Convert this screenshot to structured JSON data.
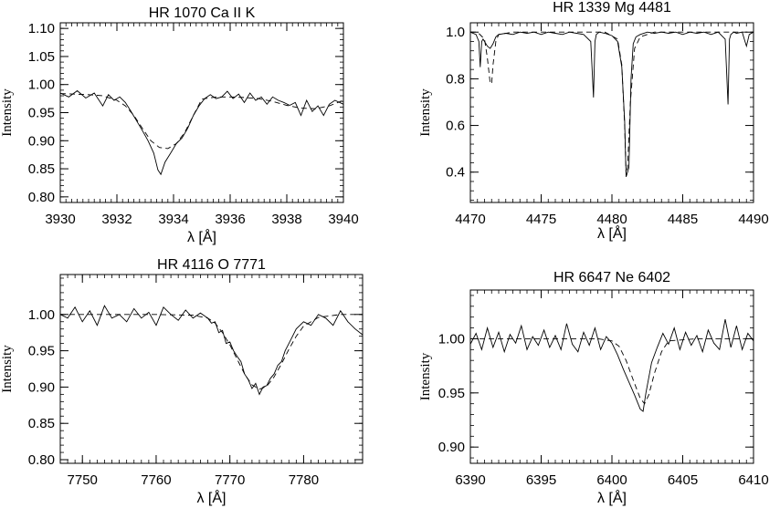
{
  "chart_data": [
    {
      "type": "line",
      "title": "HR 1070   Ca II K",
      "xlabel": "λ [Å]",
      "ylabel": "Intensity",
      "xlim": [
        3930,
        3940
      ],
      "ylim": [
        0.79,
        1.11
      ],
      "xticks": [
        3930,
        3932,
        3934,
        3936,
        3938,
        3940
      ],
      "xticklabels": [
        "3930",
        "3932",
        "3934",
        "3936",
        "3938",
        "3940"
      ],
      "yticks": [
        0.8,
        0.85,
        0.9,
        0.95,
        1.0,
        1.05,
        1.1
      ],
      "yticklabels": [
        "0.80",
        "0.85",
        "0.90",
        "0.95",
        "1.00",
        "1.05",
        "1.10"
      ],
      "series": [
        {
          "style": "solid",
          "x": [
            3930.0,
            3930.3,
            3930.6,
            3930.9,
            3931.2,
            3931.5,
            3931.7,
            3931.9,
            3932.1,
            3932.3,
            3932.5,
            3932.7,
            3932.9,
            3933.1,
            3933.3,
            3933.45,
            3933.55,
            3933.7,
            3933.9,
            3934.1,
            3934.3,
            3934.5,
            3934.7,
            3934.9,
            3935.1,
            3935.3,
            3935.5,
            3935.7,
            3935.9,
            3936.1,
            3936.3,
            3936.5,
            3936.7,
            3936.9,
            3937.1,
            3937.3,
            3937.5,
            3937.7,
            3937.9,
            3938.1,
            3938.3,
            3938.5,
            3938.7,
            3938.9,
            3939.1,
            3939.3,
            3939.5,
            3939.7,
            3940.0
          ],
          "y": [
            0.985,
            0.978,
            0.989,
            0.976,
            0.985,
            0.962,
            0.982,
            0.972,
            0.978,
            0.968,
            0.952,
            0.935,
            0.918,
            0.9,
            0.878,
            0.848,
            0.84,
            0.862,
            0.878,
            0.895,
            0.905,
            0.922,
            0.945,
            0.962,
            0.975,
            0.982,
            0.975,
            0.978,
            0.988,
            0.975,
            0.983,
            0.968,
            0.985,
            0.972,
            0.978,
            0.965,
            0.978,
            0.972,
            0.968,
            0.963,
            0.968,
            0.945,
            0.972,
            0.952,
            0.962,
            0.945,
            0.965,
            0.972,
            0.965
          ]
        },
        {
          "style": "dashed",
          "x": [
            3930.0,
            3930.5,
            3931.0,
            3931.5,
            3932.0,
            3932.3,
            3932.6,
            3932.9,
            3933.2,
            3933.5,
            3933.8,
            3934.1,
            3934.4,
            3934.7,
            3935.0,
            3935.5,
            3936.0,
            3936.5,
            3937.0,
            3937.5,
            3938.0,
            3938.5,
            3939.0,
            3939.5,
            3940.0
          ],
          "y": [
            0.984,
            0.983,
            0.982,
            0.98,
            0.972,
            0.962,
            0.945,
            0.922,
            0.9,
            0.888,
            0.886,
            0.895,
            0.915,
            0.945,
            0.974,
            0.978,
            0.978,
            0.977,
            0.975,
            0.97,
            0.963,
            0.958,
            0.957,
            0.962,
            0.972
          ]
        }
      ]
    },
    {
      "type": "line",
      "title": "HR 1339  Mg 4481",
      "xlabel": "λ [Å]",
      "ylabel": "Intensity",
      "xlim": [
        4470,
        4490
      ],
      "ylim": [
        0.27,
        1.04
      ],
      "xticks": [
        4470,
        4475,
        4480,
        4485,
        4490
      ],
      "xticklabels": [
        "4470",
        "4475",
        "4480",
        "4485",
        "4490"
      ],
      "yticks": [
        0.4,
        0.6,
        0.8,
        1.0
      ],
      "yticklabels": [
        "0.4",
        "0.6",
        "0.8",
        "1.0"
      ],
      "series": [
        {
          "style": "solid",
          "x": [
            4470.0,
            4470.4,
            4470.6,
            4470.7,
            4470.8,
            4470.9,
            4471.0,
            4471.2,
            4471.4,
            4471.6,
            4471.8,
            4472.0,
            4472.5,
            4473.0,
            4473.5,
            4474.0,
            4474.5,
            4475.0,
            4475.5,
            4476.0,
            4476.5,
            4477.0,
            4477.5,
            4478.0,
            4478.5,
            4478.7,
            4478.8,
            4478.9,
            4479.1,
            4479.5,
            4480.0,
            4480.4,
            4480.7,
            4480.9,
            4481.0,
            4481.1,
            4481.2,
            4481.35,
            4481.5,
            4481.7,
            4482.0,
            4482.5,
            4483.0,
            4483.5,
            4484.0,
            4484.5,
            4485.0,
            4485.5,
            4486.0,
            4486.5,
            4487.0,
            4487.5,
            4488.0,
            4488.2,
            4488.3,
            4488.4,
            4488.6,
            4488.8,
            4489.2,
            4489.4,
            4489.5,
            4489.7,
            4490.0
          ],
          "y": [
            1.0,
            0.99,
            0.96,
            0.85,
            0.96,
            0.97,
            0.96,
            0.94,
            0.93,
            0.95,
            0.98,
            0.99,
            0.995,
            0.99,
            1.0,
            0.995,
            1.0,
            0.99,
            1.0,
            0.995,
            0.99,
            1.0,
            0.995,
            0.99,
            0.96,
            0.72,
            0.96,
            0.99,
            1.0,
            0.995,
            0.985,
            0.96,
            0.85,
            0.62,
            0.38,
            0.4,
            0.42,
            0.8,
            0.95,
            0.98,
            0.99,
            1.0,
            0.995,
            1.0,
            0.995,
            1.0,
            0.99,
            1.0,
            0.995,
            1.0,
            0.99,
            1.0,
            0.97,
            0.69,
            0.97,
            0.99,
            1.0,
            0.995,
            1.0,
            0.96,
            0.94,
            0.99,
            1.0
          ]
        },
        {
          "style": "dashed",
          "x": [
            4470.0,
            4470.5,
            4471.0,
            4471.2,
            4471.4,
            4471.5,
            4471.6,
            4471.8,
            4472.0,
            4473.0,
            4475.0,
            4477.0,
            4478.5,
            4479.5,
            4480.4,
            4480.7,
            4480.9,
            4481.0,
            4481.1,
            4481.3,
            4481.6,
            4482.0,
            4483.0,
            4485.0,
            4487.0,
            4489.0,
            4490.0
          ],
          "y": [
            1.0,
            1.0,
            0.97,
            0.89,
            0.78,
            0.78,
            0.86,
            0.96,
            0.99,
            1.0,
            1.0,
            1.0,
            1.0,
            1.0,
            0.97,
            0.86,
            0.6,
            0.39,
            0.42,
            0.7,
            0.93,
            0.98,
            1.0,
            1.0,
            1.0,
            1.0,
            1.0
          ]
        }
      ]
    },
    {
      "type": "line",
      "title": "HR 4116  O 7771",
      "xlabel": "λ [Å]",
      "ylabel": "Intensity",
      "xlim": [
        7747,
        7788
      ],
      "ylim": [
        0.795,
        1.055
      ],
      "xticks": [
        7750,
        7760,
        7770,
        7780
      ],
      "xticklabels": [
        "7750",
        "7760",
        "7770",
        "7780"
      ],
      "yticks": [
        0.8,
        0.85,
        0.9,
        0.95,
        1.0
      ],
      "yticklabels": [
        "0.80",
        "0.85",
        "0.90",
        "0.95",
        "1.00"
      ],
      "series": [
        {
          "style": "solid",
          "x": [
            7747,
            7748,
            7749,
            7750,
            7751,
            7752,
            7753,
            7754,
            7755,
            7756,
            7757,
            7758,
            7759,
            7760,
            7761,
            7762,
            7763,
            7764,
            7765,
            7766,
            7767,
            7767.5,
            7768,
            7768.5,
            7769,
            7769.5,
            7770,
            7770.5,
            7771,
            7771.5,
            7772,
            7772.5,
            7773,
            7773.5,
            7774,
            7774.5,
            7775,
            7775.5,
            7776,
            7776.5,
            7777,
            7777.5,
            7778,
            7778.5,
            7779,
            7780,
            7781,
            7782,
            7783,
            7784,
            7785,
            7786,
            7787,
            7788
          ],
          "y": [
            1.0,
            0.995,
            1.01,
            0.99,
            1.005,
            0.985,
            1.012,
            0.995,
            1.0,
            0.99,
            1.008,
            0.995,
            1.003,
            0.985,
            1.01,
            1.0,
            0.992,
            1.006,
            0.995,
            1.002,
            0.995,
            0.988,
            0.99,
            0.975,
            0.978,
            0.96,
            0.962,
            0.95,
            0.942,
            0.935,
            0.918,
            0.91,
            0.898,
            0.905,
            0.89,
            0.9,
            0.902,
            0.912,
            0.918,
            0.93,
            0.935,
            0.95,
            0.96,
            0.97,
            0.98,
            0.99,
            0.985,
            1.0,
            0.995,
            0.985,
            1.005,
            0.99,
            0.98,
            0.972
          ]
        },
        {
          "style": "dashed",
          "x": [
            7747,
            7750,
            7755,
            7760,
            7765,
            7767,
            7768,
            7769,
            7770,
            7771,
            7772,
            7773,
            7774,
            7775,
            7776,
            7777,
            7778,
            7779,
            7780,
            7782,
            7785,
            7788
          ],
          "y": [
            1.0,
            1.0,
            1.0,
            1.0,
            0.999,
            0.995,
            0.988,
            0.975,
            0.958,
            0.938,
            0.918,
            0.903,
            0.897,
            0.901,
            0.914,
            0.932,
            0.952,
            0.97,
            0.984,
            0.996,
            1.0,
            1.0
          ]
        }
      ]
    },
    {
      "type": "line",
      "title": "HR 6647  Ne 6402",
      "xlabel": "λ [Å]",
      "ylabel": "Intensity",
      "xlim": [
        6390,
        6410
      ],
      "ylim": [
        0.885,
        1.045
      ],
      "xticks": [
        6390,
        6395,
        6400,
        6405,
        6410
      ],
      "xticklabels": [
        "6390",
        "6395",
        "6400",
        "6405",
        "6410"
      ],
      "yticks": [
        0.9,
        0.95,
        1.0
      ],
      "yticklabels": [
        "0.90",
        "0.95",
        "1.00"
      ],
      "series": [
        {
          "style": "solid",
          "x": [
            6390.0,
            6390.4,
            6390.8,
            6391.2,
            6391.6,
            6392.0,
            6392.4,
            6392.8,
            6393.2,
            6393.6,
            6394.0,
            6394.4,
            6394.8,
            6395.2,
            6395.6,
            6396.0,
            6396.4,
            6396.8,
            6397.2,
            6397.6,
            6398.0,
            6398.4,
            6398.8,
            6399.2,
            6399.6,
            6400.0,
            6400.4,
            6400.8,
            6401.2,
            6401.6,
            6402.0,
            6402.2,
            6402.4,
            6402.8,
            6403.2,
            6403.6,
            6404.0,
            6404.4,
            6404.8,
            6405.2,
            6405.6,
            6406.0,
            6406.4,
            6406.8,
            6407.2,
            6407.6,
            6408.0,
            6408.4,
            6408.8,
            6409.2,
            6409.6,
            6410.0
          ],
          "y": [
            0.995,
            1.005,
            0.99,
            1.01,
            0.992,
            1.006,
            0.988,
            1.004,
            0.996,
            1.012,
            0.99,
            1.002,
            0.994,
            1.008,
            0.992,
            1.003,
            0.99,
            1.014,
            0.995,
            0.988,
            1.006,
            0.994,
            1.01,
            0.99,
            1.002,
            0.996,
            0.985,
            0.972,
            0.96,
            0.948,
            0.935,
            0.933,
            0.95,
            0.978,
            0.992,
            1.005,
            0.995,
            1.01,
            0.99,
            1.006,
            0.994,
            1.003,
            0.988,
            1.008,
            0.996,
            0.99,
            1.018,
            0.992,
            1.012,
            0.99,
            1.005,
            0.998
          ]
        },
        {
          "style": "dashed",
          "x": [
            6390,
            6395,
            6399,
            6400,
            6400.5,
            6401,
            6401.5,
            6402,
            6402.3,
            6402.6,
            6403,
            6403.5,
            6404,
            6406,
            6410
          ],
          "y": [
            1.0,
            1.0,
            1.0,
            0.998,
            0.993,
            0.98,
            0.962,
            0.945,
            0.94,
            0.948,
            0.968,
            0.988,
            0.998,
            1.0,
            1.0
          ]
        }
      ]
    }
  ]
}
